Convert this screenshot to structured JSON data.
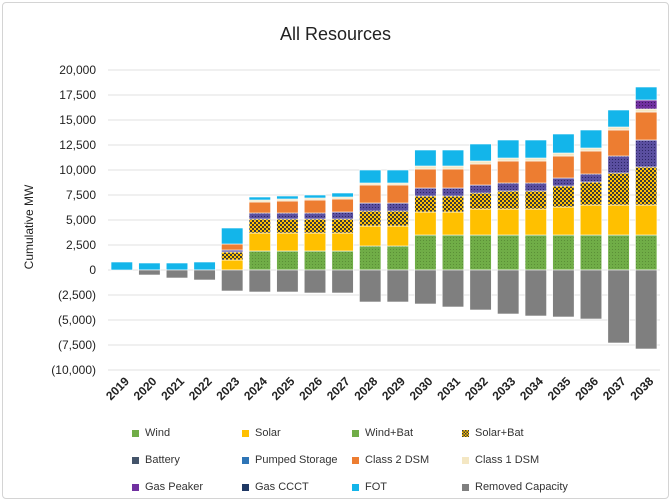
{
  "chart_data": {
    "type": "bar",
    "title": "All Resources",
    "ylabel": "Cumulative MW",
    "xlabel": "",
    "ylim": [
      -10000,
      20000
    ],
    "ytick_values": [
      20000,
      17500,
      15000,
      12500,
      10000,
      7500,
      5000,
      2500,
      0,
      -2500,
      -5000,
      -7500,
      -10000
    ],
    "ytick_labels": [
      "20,000",
      "17,500",
      "15,000",
      "12,500",
      "10,000",
      "7,500",
      "5,000",
      "2,500",
      "0",
      "(2,500)",
      "(5,000)",
      "(7,500)",
      "(10,000)"
    ],
    "grid": true,
    "legend_position": "bottom",
    "stacked": true,
    "categories": [
      "2019",
      "2020",
      "2021",
      "2022",
      "2023",
      "2024",
      "2025",
      "2026",
      "2027",
      "2028",
      "2029",
      "2030",
      "2031",
      "2032",
      "2033",
      "2034",
      "2035",
      "2036",
      "2037",
      "2038"
    ],
    "series": [
      {
        "name": "Wind",
        "color": "#70ad47",
        "pattern": "dots",
        "values": [
          0,
          0,
          0,
          0,
          0,
          1900,
          1900,
          1900,
          1900,
          2400,
          2400,
          3500,
          3500,
          3500,
          3500,
          3500,
          3500,
          3500,
          3500,
          3500
        ]
      },
      {
        "name": "Solar",
        "color": "#ffc000",
        "pattern": "solid",
        "values": [
          0,
          0,
          0,
          0,
          1000,
          1800,
          1800,
          1800,
          1800,
          2000,
          2000,
          2300,
          2300,
          2600,
          2600,
          2600,
          2800,
          3000,
          3000,
          3000
        ]
      },
      {
        "name": "Wind+Bat",
        "color": "#70ad47",
        "pattern": "grid",
        "values": [
          0,
          0,
          0,
          0,
          0,
          0,
          0,
          0,
          0,
          0,
          0,
          0,
          0,
          0,
          0,
          0,
          0,
          0,
          0,
          0
        ]
      },
      {
        "name": "Solar+Bat",
        "color": "#bf8f00",
        "pattern": "checker",
        "values": [
          0,
          0,
          0,
          0,
          800,
          1400,
          1400,
          1400,
          1400,
          1500,
          1500,
          1600,
          1600,
          1600,
          1800,
          1800,
          2100,
          2300,
          3200,
          3800
        ]
      },
      {
        "name": "Battery",
        "color": "#44546a",
        "pattern": "dots",
        "values": [
          0,
          0,
          0,
          0,
          200,
          600,
          600,
          600,
          700,
          800,
          800,
          800,
          800,
          800,
          800,
          800,
          800,
          800,
          1700,
          2700
        ]
      },
      {
        "name": "Pumped Storage",
        "color": "#2e75b6",
        "pattern": "solid",
        "values": [
          0,
          0,
          0,
          0,
          0,
          0,
          0,
          0,
          0,
          0,
          0,
          0,
          0,
          0,
          0,
          0,
          0,
          0,
          0,
          0
        ]
      },
      {
        "name": "Class 2 DSM",
        "color": "#ed7d31",
        "pattern": "solid",
        "values": [
          0,
          0,
          0,
          0,
          600,
          1100,
          1200,
          1300,
          1300,
          1800,
          1800,
          1900,
          1900,
          2100,
          2200,
          2200,
          2200,
          2300,
          2600,
          2800
        ]
      },
      {
        "name": "Class 1 DSM",
        "color": "#f4e7c3",
        "pattern": "solid",
        "values": [
          0,
          0,
          0,
          0,
          0,
          200,
          200,
          200,
          200,
          200,
          200,
          300,
          300,
          300,
          300,
          300,
          300,
          300,
          300,
          300
        ]
      },
      {
        "name": "Gas Peaker",
        "color": "#7030a0",
        "pattern": "dots",
        "values": [
          0,
          0,
          0,
          0,
          0,
          0,
          0,
          0,
          0,
          0,
          0,
          0,
          0,
          0,
          0,
          0,
          0,
          0,
          0,
          900
        ]
      },
      {
        "name": "Gas CCCT",
        "color": "#1f3864",
        "pattern": "dots",
        "values": [
          0,
          0,
          0,
          0,
          0,
          0,
          0,
          0,
          0,
          0,
          0,
          0,
          0,
          0,
          0,
          0,
          0,
          0,
          0,
          0
        ]
      },
      {
        "name": "FOT",
        "color": "#13b5ea",
        "pattern": "solid",
        "values": [
          800,
          700,
          700,
          800,
          1600,
          300,
          300,
          300,
          400,
          1300,
          1300,
          1600,
          1600,
          1700,
          1800,
          1800,
          1900,
          1800,
          1700,
          1300
        ]
      },
      {
        "name": "Removed Capacity",
        "color": "#7f7f7f",
        "pattern": "solid",
        "values": [
          0,
          -500,
          -800,
          -1000,
          -2100,
          -2200,
          -2200,
          -2300,
          -2300,
          -3200,
          -3200,
          -3400,
          -3700,
          -4000,
          -4400,
          -4600,
          -4700,
          -4900,
          -7300,
          -7900
        ]
      }
    ]
  }
}
